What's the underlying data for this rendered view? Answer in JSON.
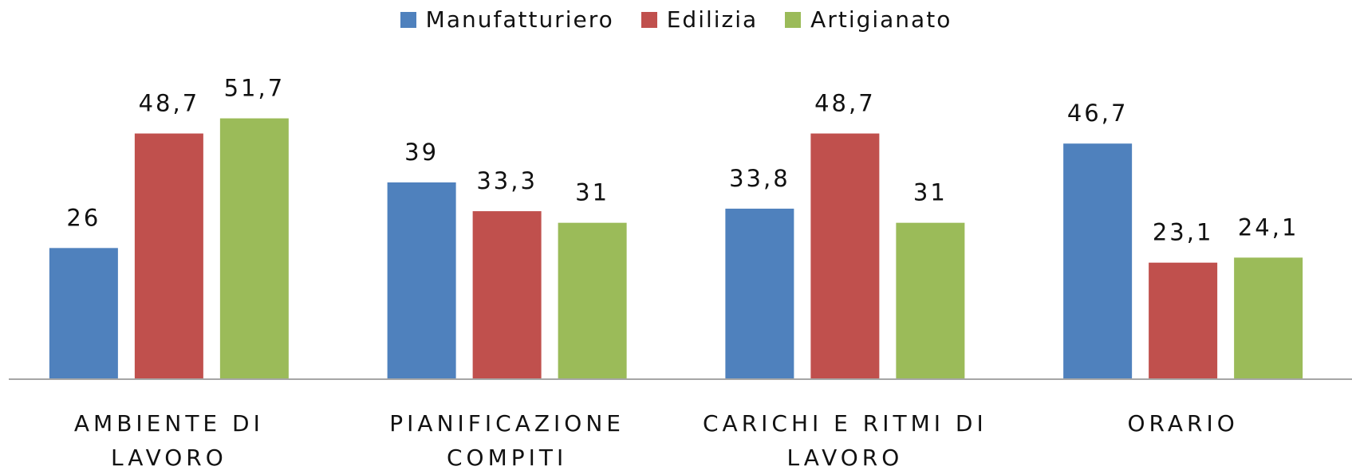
{
  "chart_data": {
    "type": "bar",
    "categories": [
      "AMBIENTE DI LAVORO",
      "PIANIFICAZIONE COMPITI",
      "CARICHI E RITMI DI LAVORO",
      "ORARIO"
    ],
    "series": [
      {
        "name": "Manufatturiero",
        "color": "#4f81bd",
        "values": [
          26,
          39,
          33.8,
          46.7
        ],
        "value_labels": [
          "26",
          "39",
          "33,8",
          "46,7"
        ]
      },
      {
        "name": "Edilizia",
        "color": "#c0504d",
        "values": [
          48.7,
          33.3,
          48.7,
          23.1
        ],
        "value_labels": [
          "48,7",
          "33,3",
          "48,7",
          "23,1"
        ]
      },
      {
        "name": "Artigianato",
        "color": "#9bbb59",
        "values": [
          51.7,
          31,
          31,
          24.1
        ],
        "value_labels": [
          "51,7",
          "31",
          "31",
          "24,1"
        ]
      }
    ],
    "ylim": [
      0,
      60
    ],
    "legend": "top"
  }
}
